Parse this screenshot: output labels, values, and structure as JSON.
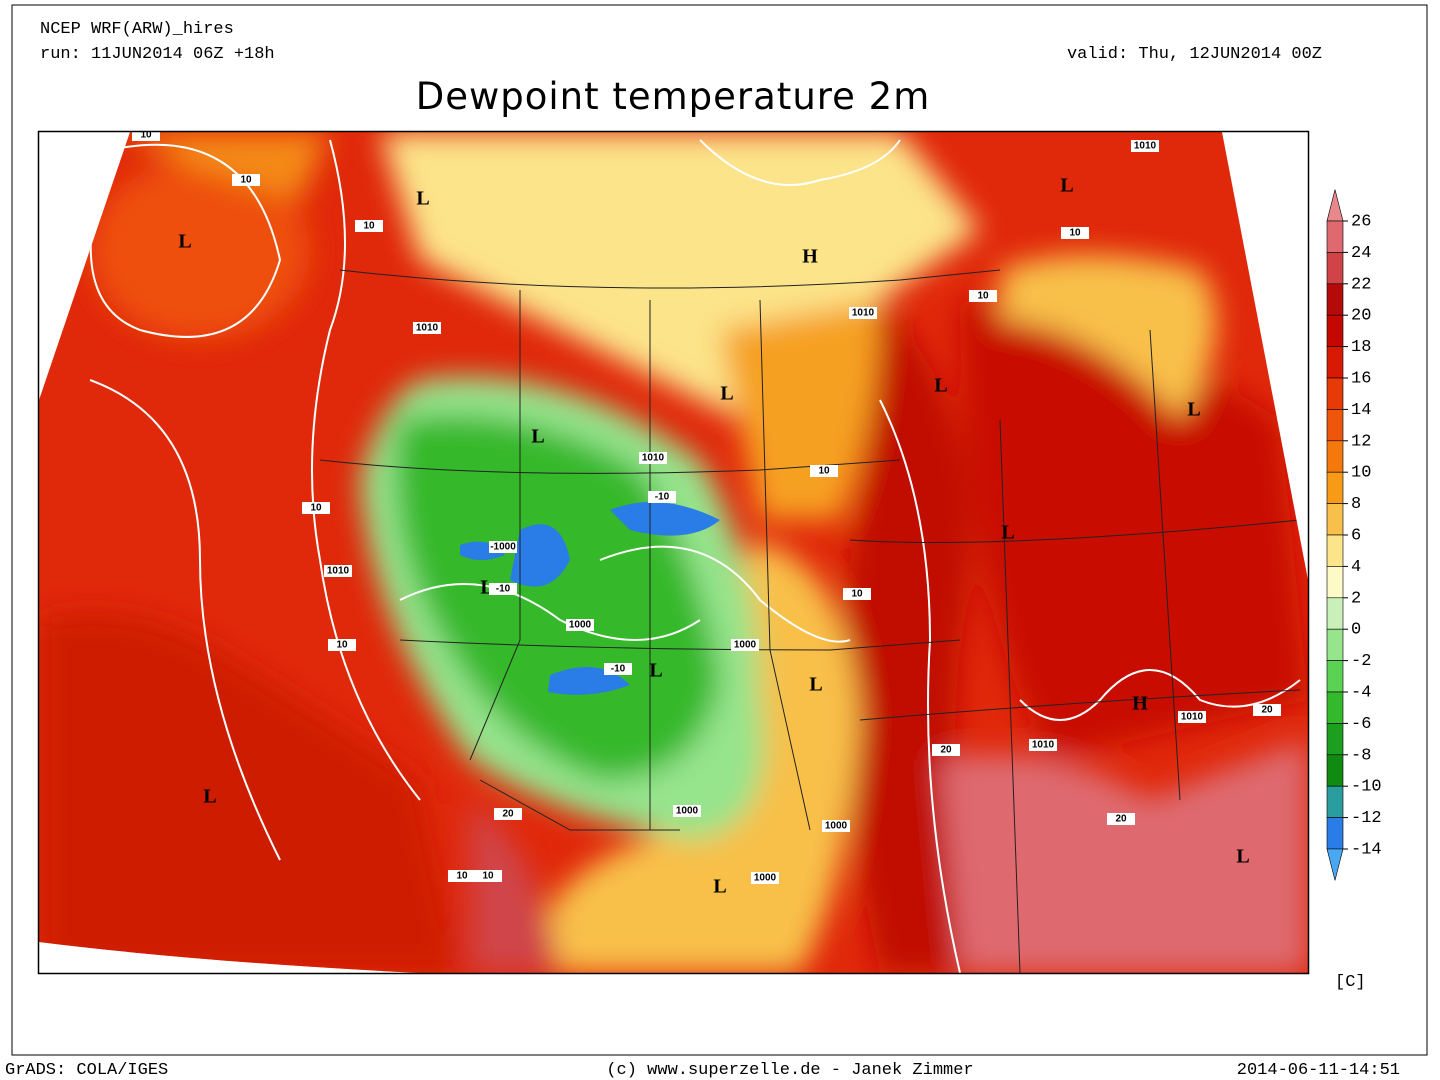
{
  "header": {
    "model": "NCEP WRF(ARW)_hires",
    "run": "run: 11JUN2014 06Z +18h",
    "valid": "valid: Thu, 12JUN2014 00Z",
    "title": "Dewpoint temperature 2m"
  },
  "map": {
    "pressure_centers": [
      "L",
      "L",
      "H",
      "L",
      "L",
      "L",
      "L",
      "L",
      "L",
      "L",
      "L",
      "L",
      "H",
      "L",
      "L",
      "L"
    ],
    "contour_labels": [
      "1010",
      "1010",
      "1010",
      "1010",
      "1010",
      "1010",
      "1010",
      "1000",
      "1000",
      "1000",
      "1000",
      "1000",
      "-1000",
      "-10",
      "-10",
      "-10",
      "10",
      "10",
      "10",
      "10",
      "10",
      "10",
      "10",
      "10",
      "10",
      "10",
      "10",
      "20",
      "20",
      "20",
      "20"
    ]
  },
  "colorbar": {
    "ticks": [
      26,
      24,
      22,
      20,
      18,
      16,
      14,
      12,
      10,
      8,
      6,
      4,
      2,
      0,
      -2,
      -4,
      -6,
      -8,
      -10,
      -12,
      -14
    ],
    "colors": [
      "#e8888c",
      "#de6a70",
      "#d04448",
      "#b40a0a",
      "#c40800",
      "#d81a04",
      "#e63a08",
      "#ee560c",
      "#f4780c",
      "#f69a18",
      "#f8c04a",
      "#fce48a",
      "#fefac8",
      "#c8f0b8",
      "#96e48c",
      "#5cd254",
      "#34b82c",
      "#1e9e1e",
      "#108a10",
      "#2a9e9e",
      "#2a7ce6",
      "#48a8f4"
    ],
    "unit": "[C]"
  },
  "footer": {
    "left": "GrADS: COLA/IGES",
    "center": "(c) www.superzelle.de - Janek Zimmer",
    "right": "2014-06-11-14:51"
  }
}
